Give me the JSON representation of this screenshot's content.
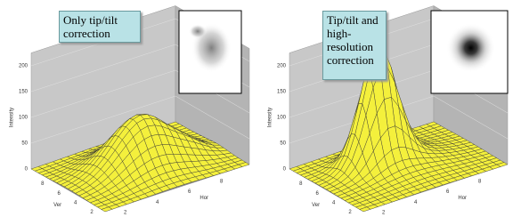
{
  "panels": [
    {
      "label": "Only tip/tilt correction",
      "z_axis_label": "Intensity",
      "z_ticks": [
        0,
        50,
        100,
        150,
        200
      ],
      "ver_label": "Ver",
      "ver_ticks": [
        2,
        4,
        6,
        8
      ],
      "hor_label": "Hor",
      "hor_ticks": [
        2,
        4,
        6,
        8
      ]
    },
    {
      "label": "Tip/tilt and high-resolution correction",
      "z_axis_label": "Intensity",
      "z_ticks": [
        0,
        50,
        100,
        150,
        200
      ],
      "ver_label": "Ver",
      "ver_ticks": [
        2,
        4,
        6,
        8
      ],
      "hor_label": "Hor",
      "hor_ticks": [
        2,
        4,
        6,
        8
      ]
    }
  ]
}
